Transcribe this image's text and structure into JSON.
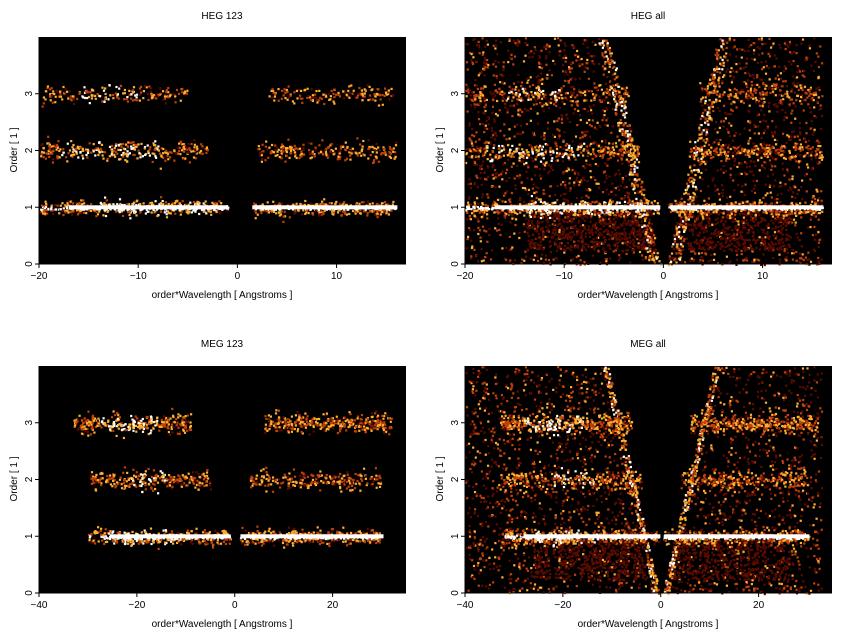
{
  "colors": {
    "background": "#000000",
    "low": "#5a0a00",
    "mid": "#c0400a",
    "high": "#ffb030",
    "peak": "#ffffff"
  },
  "chart_data": [
    {
      "type": "heatmap",
      "title": "HEG 123",
      "xlabel": "order*Wavelength [ Angstroms ]",
      "ylabel": "Order [ 1 ]",
      "xlim": [
        -20,
        17
      ],
      "ylim": [
        0,
        4
      ],
      "xticks": [
        -20,
        -10,
        0,
        10
      ],
      "yticks": [
        0,
        1,
        2,
        3
      ],
      "x_tick_labels": [
        "−20",
        "−10",
        "0",
        "10"
      ],
      "y_tick_labels": [
        "0",
        "1",
        "2",
        "3"
      ],
      "colorscale": "heat",
      "bands": [
        {
          "order": 1,
          "x_range": [
            -20,
            16
          ],
          "gap": [
            -1,
            1.5
          ],
          "peak_range": [
            -14,
            -2
          ],
          "intensity": "high"
        },
        {
          "order": 2,
          "x_range": [
            -20,
            16
          ],
          "gap": [
            -3,
            2
          ],
          "peak_range": [
            -18,
            -8
          ],
          "intensity": "medium"
        },
        {
          "order": 3,
          "x_range": [
            -20,
            16
          ],
          "gap": [
            -5,
            3
          ],
          "peak_range": [
            -16,
            -10
          ],
          "intensity": "low"
        }
      ]
    },
    {
      "type": "heatmap",
      "title": "HEG all",
      "xlabel": "order*Wavelength [ Angstroms ]",
      "ylabel": "Order [ 1 ]",
      "xlim": [
        -20,
        17
      ],
      "ylim": [
        0,
        4
      ],
      "xticks": [
        -20,
        -10,
        0,
        10
      ],
      "yticks": [
        0,
        1,
        2,
        3
      ],
      "x_tick_labels": [
        "−20",
        "−10",
        "0",
        "10"
      ],
      "y_tick_labels": [
        "0",
        "1",
        "2",
        "3"
      ],
      "colorscale": "heat",
      "bands": [
        {
          "order": 1,
          "x_range": [
            -20,
            16
          ],
          "gap": [
            -0.5,
            0.5
          ],
          "peak_range": [
            -14,
            -2
          ],
          "intensity": "high"
        },
        {
          "order": 2,
          "x_range": [
            -20,
            16
          ],
          "gap": [
            -2.5,
            2.5
          ],
          "peak_range": [
            -18,
            -8
          ],
          "intensity": "medium"
        },
        {
          "order": 3,
          "x_range": [
            -20,
            16
          ],
          "gap": [
            -3.5,
            3.5
          ],
          "peak_range": [
            -16,
            -10
          ],
          "intensity": "low"
        }
      ]
    },
    {
      "type": "heatmap",
      "title": "MEG 123",
      "xlabel": "order*Wavelength [ Angstroms ]",
      "ylabel": "Order [ 1 ]",
      "xlim": [
        -40,
        35
      ],
      "ylim": [
        0,
        4
      ],
      "xticks": [
        -40,
        -20,
        0,
        20
      ],
      "yticks": [
        0,
        1,
        2,
        3
      ],
      "x_tick_labels": [
        "−40",
        "−20",
        "0",
        "20"
      ],
      "y_tick_labels": [
        "0",
        "1",
        "2",
        "3"
      ],
      "colorscale": "heat",
      "bands": [
        {
          "order": 1,
          "x_range": [
            -30,
            30
          ],
          "gap": [
            -1,
            1
          ],
          "peak_range": [
            -26,
            -12
          ],
          "intensity": "high"
        },
        {
          "order": 2,
          "x_range": [
            -30,
            30
          ],
          "gap": [
            -5,
            3
          ],
          "peak_range": [
            -22,
            -14
          ],
          "intensity": "medium"
        },
        {
          "order": 3,
          "x_range": [
            -33,
            32
          ],
          "gap": [
            -9,
            6
          ],
          "peak_range": [
            -28,
            -16
          ],
          "intensity": "high"
        }
      ]
    },
    {
      "type": "heatmap",
      "title": "MEG all",
      "xlabel": "order*Wavelength [ Angstroms ]",
      "ylabel": "Order [ 1 ]",
      "xlim": [
        -40,
        35
      ],
      "ylim": [
        0,
        4
      ],
      "xticks": [
        -40,
        -20,
        0,
        20
      ],
      "yticks": [
        0,
        1,
        2,
        3
      ],
      "x_tick_labels": [
        "−40",
        "−20",
        "0",
        "20"
      ],
      "y_tick_labels": [
        "0",
        "1",
        "2",
        "3"
      ],
      "colorscale": "heat",
      "bands": [
        {
          "order": 1,
          "x_range": [
            -33,
            30
          ],
          "gap": [
            -0.5,
            0.5
          ],
          "peak_range": [
            -26,
            -12
          ],
          "intensity": "high"
        },
        {
          "order": 2,
          "x_range": [
            -33,
            30
          ],
          "gap": [
            -4,
            4
          ],
          "peak_range": [
            -22,
            -14
          ],
          "intensity": "medium"
        },
        {
          "order": 3,
          "x_range": [
            -33,
            32
          ],
          "gap": [
            -6,
            6
          ],
          "peak_range": [
            -28,
            -16
          ],
          "intensity": "high"
        }
      ]
    }
  ]
}
